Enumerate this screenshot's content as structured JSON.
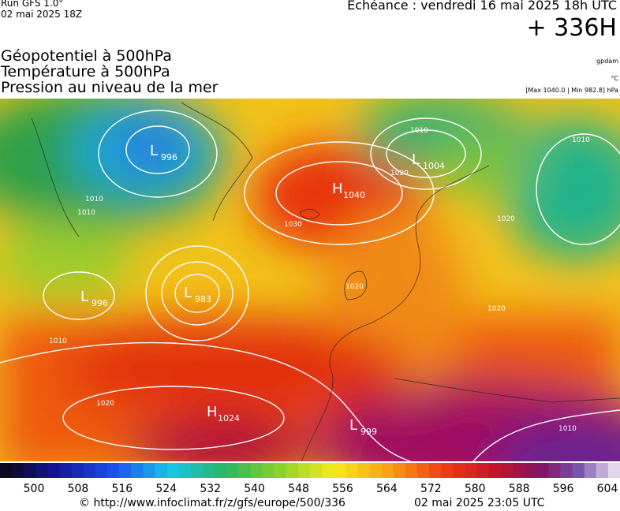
{
  "header": {
    "run": "Run GFS 1.0°",
    "run_date": "02 mai 2025 18Z",
    "forecast_time": "Echéance : vendredi 16 mai 2025 18h UTC",
    "lead_time": "+ 336H",
    "titles": [
      "Géopotentiel à 500hPa",
      "Température à 500hPa",
      "Pression au niveau de la mer"
    ],
    "units": [
      "gpdam",
      "°C",
      "[Max 1040.0 | Min 982.8] hPa"
    ]
  },
  "map": {
    "pressure_centers": [
      {
        "type": "L",
        "value": "996"
      },
      {
        "type": "H",
        "value": "1040"
      },
      {
        "type": "L",
        "value": "1004"
      },
      {
        "type": "L",
        "value": "996"
      },
      {
        "type": "L",
        "value": "983"
      },
      {
        "type": "H",
        "value": "1024"
      },
      {
        "type": "L",
        "value": "999"
      }
    ],
    "isobar_labels": [
      "1010",
      "1020",
      "1030",
      "1020",
      "1010",
      "1010",
      "1020",
      "1020",
      "1010",
      "1010",
      "1020",
      "1010"
    ]
  },
  "colorbar": {
    "labels": [
      500,
      508,
      516,
      524,
      532,
      540,
      548,
      556,
      564,
      572,
      580,
      588,
      596,
      604
    ]
  },
  "footer": {
    "source": "© http://www.infoclimat.fr/z/gfs/europe/500/336",
    "generated": "02 mai 2025 23:05 UTC"
  }
}
